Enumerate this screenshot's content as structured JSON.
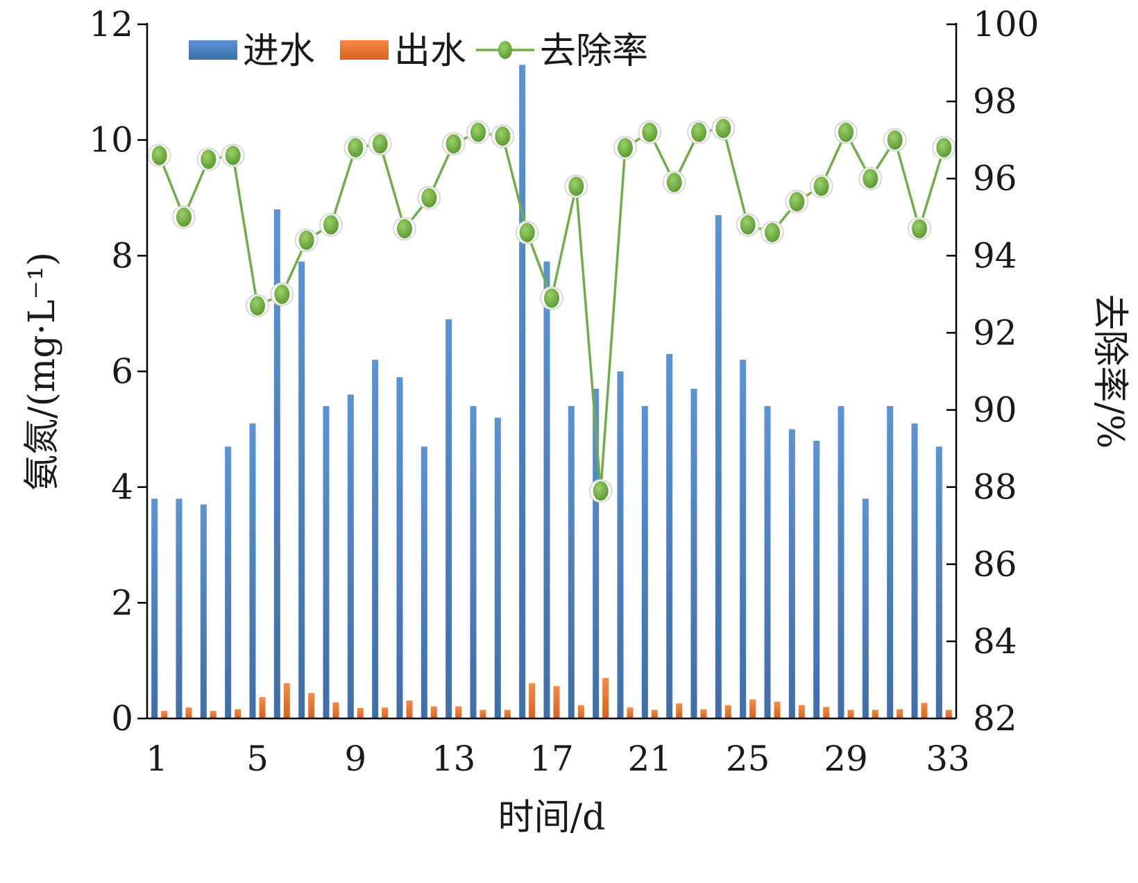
{
  "chart_data": {
    "type": "bar",
    "x": [
      1,
      2,
      3,
      4,
      5,
      6,
      7,
      8,
      9,
      10,
      11,
      12,
      13,
      14,
      15,
      16,
      17,
      18,
      19,
      20,
      21,
      22,
      23,
      24,
      25,
      26,
      27,
      28,
      29,
      30,
      31,
      32,
      33
    ],
    "xticks": [
      "1",
      "5",
      "9",
      "13",
      "17",
      "21",
      "25",
      "29",
      "33"
    ],
    "xlabel": "时间/d",
    "ylabel_left": "氨氮/(mg·L⁻¹)",
    "ylabel_right": "去除率/%",
    "ylim_left": [
      0,
      12
    ],
    "ylim_right": [
      82,
      100
    ],
    "yticks_left": [
      "0",
      "2",
      "4",
      "6",
      "8",
      "10",
      "12"
    ],
    "yticks_right": [
      "82",
      "84",
      "86",
      "88",
      "90",
      "92",
      "94",
      "96",
      "98",
      "100"
    ],
    "legend_position": "top-left",
    "grid": false,
    "series": [
      {
        "name": "进水",
        "type": "bar",
        "axis": "left",
        "color": "#4f81bd",
        "values": [
          3.8,
          3.8,
          3.7,
          4.7,
          5.1,
          8.8,
          7.9,
          5.4,
          5.6,
          6.2,
          5.9,
          4.7,
          6.9,
          5.4,
          5.2,
          11.3,
          7.9,
          5.4,
          5.7,
          6.0,
          5.4,
          6.3,
          5.7,
          8.7,
          6.2,
          5.4,
          5.0,
          4.8,
          5.4,
          3.8,
          5.4,
          5.1,
          4.7
        ]
      },
      {
        "name": "出水",
        "type": "bar",
        "axis": "left",
        "color": "#ed7d31",
        "values": [
          0.13,
          0.19,
          0.13,
          0.16,
          0.37,
          0.61,
          0.44,
          0.28,
          0.18,
          0.19,
          0.31,
          0.21,
          0.21,
          0.15,
          0.15,
          0.61,
          0.56,
          0.23,
          0.7,
          0.19,
          0.15,
          0.26,
          0.16,
          0.23,
          0.33,
          0.29,
          0.23,
          0.2,
          0.15,
          0.15,
          0.16,
          0.27,
          0.15
        ]
      },
      {
        "name": "去除率",
        "type": "line",
        "axis": "right",
        "color": "#70ad47",
        "values": [
          96.6,
          95.0,
          96.5,
          96.6,
          92.7,
          93.0,
          94.4,
          94.8,
          96.8,
          96.9,
          94.7,
          95.5,
          96.9,
          97.2,
          97.1,
          94.6,
          92.9,
          95.8,
          87.9,
          96.8,
          97.2,
          95.9,
          97.2,
          97.3,
          94.8,
          94.6,
          95.4,
          95.8,
          97.2,
          96.0,
          97.0,
          94.7,
          96.8
        ]
      }
    ]
  }
}
